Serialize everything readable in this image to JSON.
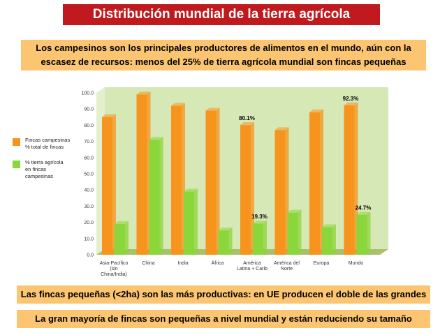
{
  "title": "Distribución mundial de la tierra agrícola",
  "subtitle": "Los campesinos son los principales productores de alimentos en el mundo, aún con la escasez de recursos: menos del 25% de tierra agrícola mundial son fincas pequeñas",
  "note1": "Las fincas pequeñas (<2ha) son las más productivas: en UE producen el doble de las grandes",
  "note2": "La gran mayoría de fincas son pequeñas a nivel mundial y están reduciendo su tamaño",
  "colors": {
    "orange": "#f7941d",
    "green": "#8bd63a",
    "wall": "#d6e8b5",
    "floor": "#a9c06d"
  },
  "chart_data": {
    "type": "bar",
    "categories": [
      "Asia-Pacífico (sin China/India)",
      "China",
      "India",
      "África",
      "América Latina + Carib",
      "América del Norte",
      "Europa",
      "Mundo"
    ],
    "category_lines": [
      [
        "Asia-Pacífico",
        "(sin",
        "China/India)"
      ],
      [
        "China"
      ],
      [
        "India"
      ],
      [
        "África"
      ],
      [
        "América",
        "Latina + Carib"
      ],
      [
        "América del",
        "Norte"
      ],
      [
        "Europa"
      ],
      [
        "Mundo"
      ]
    ],
    "series": [
      {
        "name": "Fincas campesinas % total de fincas",
        "legend_lines": [
          "Fincas campesinas",
          "% total de fincas"
        ],
        "values": [
          85,
          99,
          92,
          89,
          80.1,
          77,
          88,
          92.3
        ]
      },
      {
        "name": "% tierra agrícola en fincas campesinas",
        "legend_lines": [
          "% tierra agrícola",
          "en fincas",
          "campesinas"
        ],
        "values": [
          19,
          71,
          39,
          15,
          19.3,
          26,
          17,
          24.7
        ]
      }
    ],
    "data_labels": [
      {
        "series": 0,
        "index": 4,
        "text": "80.1%"
      },
      {
        "series": 0,
        "index": 7,
        "text": "92.3%"
      },
      {
        "series": 1,
        "index": 4,
        "text": "19.3%"
      },
      {
        "series": 1,
        "index": 7,
        "text": "24.7%"
      }
    ],
    "yticks": [
      "100.0",
      "90.0",
      "80.0",
      "70.0",
      "60.0",
      "50.0",
      "40.0",
      "30.0",
      "20.0",
      "10.0",
      "0.0"
    ],
    "ylim": [
      0,
      100
    ],
    "grid": false,
    "legend_position": "left"
  }
}
